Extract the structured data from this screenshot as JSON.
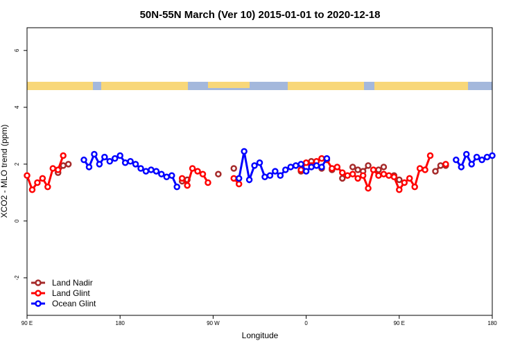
{
  "chart_data": {
    "type": "line",
    "title": "50N-55N March (Ver 10)   2015-01-01 to 2020-12-18",
    "x_label": "Longitude",
    "y_label": "XCO2 - MLO trend (ppm)",
    "x": [
      -270,
      -265,
      -260,
      -255,
      -250,
      -245,
      -240,
      -235,
      -230,
      -225,
      -220,
      -215,
      -210,
      -205,
      -200,
      -195,
      -190,
      -185,
      -180,
      -175,
      -170,
      -165,
      -160,
      -155,
      -150,
      -145,
      -140,
      -135,
      -130,
      -125,
      -120,
      -115,
      -110,
      -105,
      -100,
      -95,
      -90,
      -85,
      -80,
      -75,
      -70,
      -65,
      -60,
      -55,
      -50,
      -45,
      -40,
      -35,
      -30,
      -25,
      -20,
      -15,
      -10,
      -5,
      0,
      5,
      10,
      15,
      20,
      25,
      30,
      35,
      40,
      45,
      50,
      55,
      60,
      65,
      70,
      75,
      80,
      85,
      90,
      95,
      100,
      105,
      110,
      115,
      120,
      125,
      130,
      135,
      140,
      145,
      150,
      155,
      160,
      165,
      170,
      175,
      180
    ],
    "series": [
      {
        "name": "Land Nadir",
        "color": "#a52a2a",
        "values": [
          null,
          null,
          null,
          null,
          null,
          null,
          1.7,
          1.95,
          2.0,
          null,
          null,
          null,
          null,
          null,
          null,
          null,
          null,
          null,
          null,
          null,
          null,
          null,
          null,
          null,
          null,
          null,
          null,
          null,
          null,
          null,
          1.4,
          1.45,
          null,
          null,
          null,
          null,
          null,
          1.65,
          null,
          null,
          1.85,
          null,
          null,
          null,
          null,
          null,
          null,
          null,
          null,
          null,
          null,
          null,
          null,
          1.75,
          null,
          2.1,
          null,
          1.85,
          null,
          1.8,
          null,
          1.5,
          null,
          1.9,
          1.8,
          1.75,
          1.95,
          null,
          1.8,
          1.9,
          null,
          1.6,
          1.45,
          null,
          null,
          null,
          null,
          null,
          null,
          1.75,
          1.95,
          1.95,
          null,
          null,
          null,
          null,
          null,
          null,
          null,
          null,
          null
        ]
      },
      {
        "name": "Land Glint",
        "color": "#ff0000",
        "values": [
          1.6,
          1.1,
          1.35,
          1.5,
          1.2,
          1.85,
          1.8,
          2.3,
          null,
          null,
          null,
          null,
          null,
          null,
          null,
          null,
          null,
          null,
          null,
          null,
          null,
          null,
          null,
          null,
          null,
          null,
          null,
          null,
          null,
          null,
          1.5,
          1.25,
          1.85,
          1.75,
          1.65,
          1.35,
          null,
          null,
          null,
          null,
          1.5,
          1.3,
          null,
          null,
          null,
          null,
          null,
          null,
          null,
          null,
          null,
          null,
          null,
          1.8,
          2.05,
          1.95,
          2.1,
          2.2,
          2.15,
          1.85,
          1.9,
          1.7,
          1.6,
          1.65,
          1.5,
          1.6,
          1.15,
          1.8,
          1.6,
          1.65,
          1.6,
          1.55,
          1.1,
          1.35,
          1.5,
          1.2,
          1.85,
          1.8,
          2.3,
          null,
          null,
          2.0,
          null,
          null,
          null,
          null,
          null,
          null,
          null,
          null,
          null
        ]
      },
      {
        "name": "Ocean Glint",
        "color": "#0000ff",
        "values": [
          null,
          null,
          null,
          null,
          null,
          null,
          null,
          null,
          null,
          null,
          null,
          2.15,
          1.9,
          2.35,
          2.0,
          2.25,
          2.1,
          2.2,
          2.3,
          2.05,
          2.1,
          2.0,
          1.85,
          1.75,
          1.8,
          1.75,
          1.65,
          1.55,
          1.6,
          1.2,
          null,
          null,
          null,
          null,
          null,
          null,
          null,
          null,
          null,
          null,
          null,
          1.5,
          2.45,
          1.45,
          1.95,
          2.05,
          1.55,
          1.6,
          1.75,
          1.6,
          1.8,
          1.9,
          1.95,
          2.0,
          1.75,
          1.9,
          1.95,
          1.9,
          2.2,
          null,
          null,
          null,
          null,
          null,
          null,
          null,
          null,
          null,
          null,
          null,
          null,
          null,
          null,
          null,
          null,
          null,
          null,
          null,
          null,
          null,
          null,
          null,
          null,
          2.15,
          1.9,
          2.35,
          2.0,
          2.25,
          2.15,
          2.25,
          2.3
        ]
      }
    ],
    "xlim": [
      -270,
      180
    ],
    "xticks": [
      {
        "value": -270,
        "label": "90 E"
      },
      {
        "value": -180,
        "label": "180"
      },
      {
        "value": -90,
        "label": "90 W"
      },
      0,
      {
        "value": 90,
        "label": "90 E"
      },
      180
    ],
    "ylim": [
      -3.32,
      6.8
    ],
    "yticks": [
      -2,
      0,
      2,
      4,
      6
    ],
    "legend": "bottom-left"
  }
}
